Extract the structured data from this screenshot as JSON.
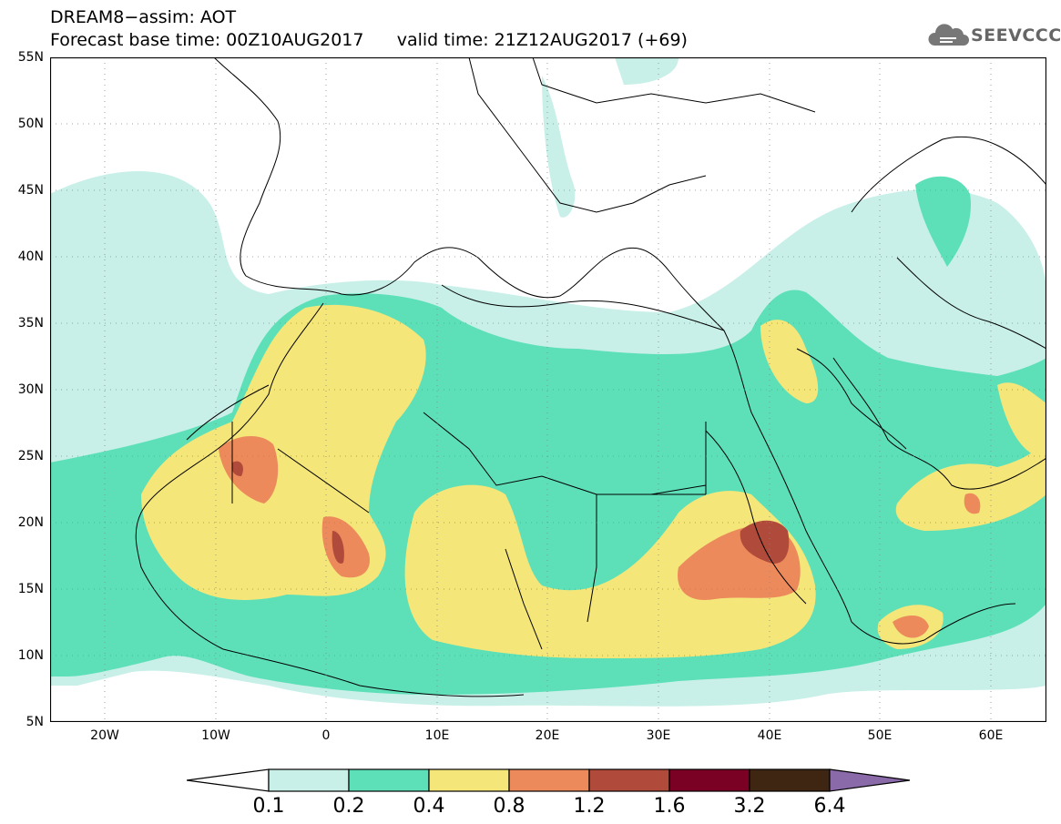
{
  "title": {
    "line1": "DREAM8−assim: AOT",
    "line2": "Forecast base time: 00Z10AUG2017      valid time: 21Z12AUG2017 (+69)"
  },
  "logo": {
    "text": "SEEVCCC",
    "icon": "cloud-logo-icon"
  },
  "map": {
    "lat_labels": [
      "55N",
      "50N",
      "45N",
      "40N",
      "35N",
      "30N",
      "25N",
      "20N",
      "15N",
      "10N",
      "5N"
    ],
    "lon_labels": [
      "20W",
      "10W",
      "0",
      "10E",
      "20E",
      "30E",
      "40E",
      "50E",
      "60E"
    ]
  },
  "legend": {
    "labels": [
      "0.1",
      "0.2",
      "0.4",
      "0.8",
      "1.2",
      "1.6",
      "3.2",
      "6.4"
    ],
    "colors": [
      "#ffffff",
      "#c8f0e8",
      "#5de0b8",
      "#f5e67a",
      "#ec8a5c",
      "#b04a3a",
      "#7a0024",
      "#3e2612",
      "#8a6aa8"
    ]
  },
  "colors": {
    "class_01_02": "#c8f0e8",
    "class_02_04": "#5de0b8",
    "class_04_08": "#f5e67a",
    "class_08_12": "#ec8a5c",
    "class_12_16": "#b04a3a",
    "class_16_32": "#7a0024"
  }
}
